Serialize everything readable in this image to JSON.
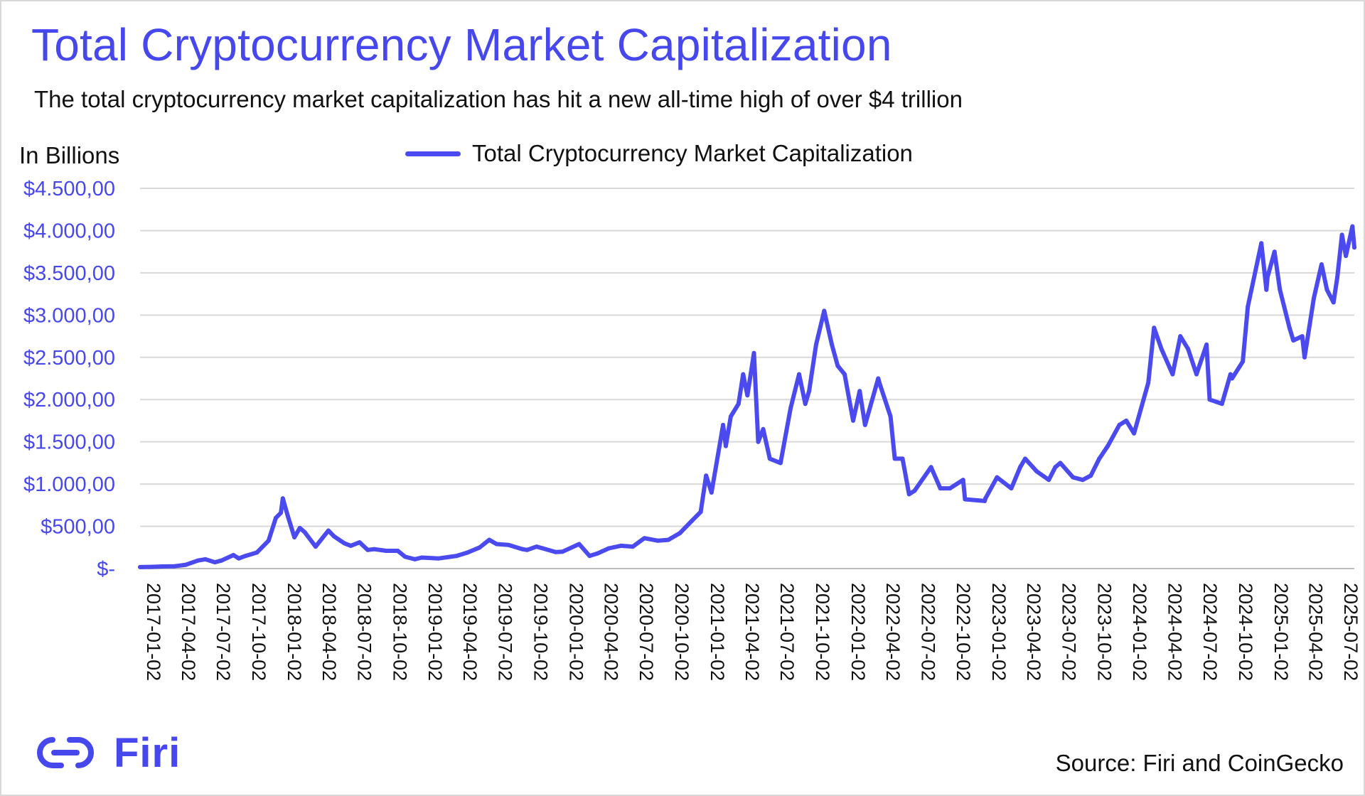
{
  "header": {
    "title": "Total Cryptocurrency Market Capitalization",
    "subtitle": "The total cryptocurrency market capitalization has hit a new all-time high of over $4 trillion"
  },
  "footer": {
    "brand": "Firi",
    "source": "Source: Firi and CoinGecko"
  },
  "colors": {
    "accent": "#4747ee",
    "line": "#4a4aef",
    "grid": "#d9d9d9"
  },
  "chart_data": {
    "type": "line",
    "ylabel": "In Billions",
    "ylim": [
      0,
      4500
    ],
    "y_ticks": [
      0,
      500,
      1000,
      1500,
      2000,
      2500,
      3000,
      3500,
      4000,
      4500
    ],
    "y_tick_labels": [
      "$-",
      "$500,00",
      "$1.000,00",
      "$1.500,00",
      "$2.000,00",
      "$2.500,00",
      "$3.000,00",
      "$3.500,00",
      "$4.000,00",
      "$4.500,00"
    ],
    "x_tick_labels": [
      "2017-01-02",
      "2017-04-02",
      "2017-07-02",
      "2017-10-02",
      "2018-01-02",
      "2018-04-02",
      "2018-07-02",
      "2018-10-02",
      "2019-01-02",
      "2019-04-02",
      "2019-07-02",
      "2019-10-02",
      "2020-01-02",
      "2020-04-02",
      "2020-07-02",
      "2020-10-02",
      "2021-01-02",
      "2021-04-02",
      "2021-07-02",
      "2021-10-02",
      "2022-01-02",
      "2022-04-02",
      "2022-07-02",
      "2022-10-02",
      "2023-01-02",
      "2023-04-02",
      "2023-07-02",
      "2023-10-02",
      "2024-01-02",
      "2024-04-02",
      "2024-07-02",
      "2024-10-02",
      "2025-01-02",
      "2025-04-02",
      "2025-07-02"
    ],
    "xlim": [
      "2017-01-02",
      "2025-08-15"
    ],
    "grid": true,
    "legend": "top-center",
    "series": [
      {
        "name": "Total Cryptocurrency Market Capitalization",
        "points": [
          [
            "2017-01-02",
            18
          ],
          [
            "2017-02-01",
            20
          ],
          [
            "2017-03-01",
            25
          ],
          [
            "2017-04-02",
            28
          ],
          [
            "2017-05-01",
            45
          ],
          [
            "2017-06-01",
            95
          ],
          [
            "2017-06-20",
            110
          ],
          [
            "2017-07-15",
            75
          ],
          [
            "2017-08-01",
            95
          ],
          [
            "2017-09-01",
            160
          ],
          [
            "2017-09-15",
            120
          ],
          [
            "2017-10-02",
            150
          ],
          [
            "2017-11-01",
            190
          ],
          [
            "2017-12-01",
            330
          ],
          [
            "2017-12-20",
            600
          ],
          [
            "2018-01-02",
            660
          ],
          [
            "2018-01-07",
            830
          ],
          [
            "2018-01-20",
            620
          ],
          [
            "2018-02-06",
            370
          ],
          [
            "2018-02-20",
            480
          ],
          [
            "2018-03-05",
            430
          ],
          [
            "2018-04-02",
            260
          ],
          [
            "2018-05-05",
            450
          ],
          [
            "2018-05-20",
            380
          ],
          [
            "2018-06-15",
            300
          ],
          [
            "2018-07-02",
            270
          ],
          [
            "2018-07-25",
            310
          ],
          [
            "2018-08-15",
            220
          ],
          [
            "2018-09-01",
            230
          ],
          [
            "2018-10-02",
            210
          ],
          [
            "2018-11-01",
            210
          ],
          [
            "2018-11-20",
            140
          ],
          [
            "2018-12-15",
            110
          ],
          [
            "2019-01-02",
            130
          ],
          [
            "2019-02-15",
            120
          ],
          [
            "2019-04-02",
            150
          ],
          [
            "2019-05-01",
            190
          ],
          [
            "2019-06-01",
            250
          ],
          [
            "2019-06-26",
            340
          ],
          [
            "2019-07-15",
            290
          ],
          [
            "2019-08-15",
            280
          ],
          [
            "2019-09-20",
            230
          ],
          [
            "2019-10-02",
            220
          ],
          [
            "2019-10-27",
            260
          ],
          [
            "2019-12-15",
            195
          ],
          [
            "2020-01-02",
            200
          ],
          [
            "2020-02-14",
            290
          ],
          [
            "2020-03-12",
            150
          ],
          [
            "2020-04-02",
            180
          ],
          [
            "2020-05-01",
            240
          ],
          [
            "2020-06-01",
            270
          ],
          [
            "2020-07-02",
            260
          ],
          [
            "2020-08-01",
            360
          ],
          [
            "2020-09-05",
            330
          ],
          [
            "2020-10-02",
            340
          ],
          [
            "2020-11-01",
            420
          ],
          [
            "2020-12-01",
            560
          ],
          [
            "2020-12-25",
            670
          ],
          [
            "2021-01-08",
            1100
          ],
          [
            "2021-01-22",
            900
          ],
          [
            "2021-02-21",
            1700
          ],
          [
            "2021-02-28",
            1450
          ],
          [
            "2021-03-13",
            1800
          ],
          [
            "2021-04-02",
            1950
          ],
          [
            "2021-04-14",
            2300
          ],
          [
            "2021-04-25",
            2050
          ],
          [
            "2021-05-12",
            2550
          ],
          [
            "2021-05-23",
            1500
          ],
          [
            "2021-06-05",
            1650
          ],
          [
            "2021-06-22",
            1300
          ],
          [
            "2021-07-20",
            1250
          ],
          [
            "2021-08-15",
            1900
          ],
          [
            "2021-09-06",
            2300
          ],
          [
            "2021-09-22",
            1950
          ],
          [
            "2021-10-02",
            2100
          ],
          [
            "2021-10-20",
            2650
          ],
          [
            "2021-11-10",
            3050
          ],
          [
            "2021-11-30",
            2650
          ],
          [
            "2021-12-15",
            2400
          ],
          [
            "2022-01-02",
            2300
          ],
          [
            "2022-01-24",
            1750
          ],
          [
            "2022-02-10",
            2100
          ],
          [
            "2022-02-24",
            1700
          ],
          [
            "2022-03-30",
            2250
          ],
          [
            "2022-04-02",
            2200
          ],
          [
            "2022-05-01",
            1800
          ],
          [
            "2022-05-12",
            1300
          ],
          [
            "2022-06-01",
            1300
          ],
          [
            "2022-06-18",
            880
          ],
          [
            "2022-07-02",
            920
          ],
          [
            "2022-08-14",
            1200
          ],
          [
            "2022-09-07",
            950
          ],
          [
            "2022-10-02",
            950
          ],
          [
            "2022-11-05",
            1050
          ],
          [
            "2022-11-10",
            820
          ],
          [
            "2022-12-31",
            800
          ],
          [
            "2023-01-02",
            830
          ],
          [
            "2023-02-01",
            1080
          ],
          [
            "2023-03-10",
            950
          ],
          [
            "2023-04-02",
            1200
          ],
          [
            "2023-04-15",
            1300
          ],
          [
            "2023-05-15",
            1150
          ],
          [
            "2023-06-15",
            1050
          ],
          [
            "2023-07-02",
            1200
          ],
          [
            "2023-07-15",
            1250
          ],
          [
            "2023-08-17",
            1080
          ],
          [
            "2023-09-11",
            1050
          ],
          [
            "2023-10-02",
            1100
          ],
          [
            "2023-10-24",
            1300
          ],
          [
            "2023-11-15",
            1450
          ],
          [
            "2023-12-15",
            1700
          ],
          [
            "2024-01-02",
            1750
          ],
          [
            "2024-01-22",
            1600
          ],
          [
            "2024-02-28",
            2200
          ],
          [
            "2024-03-14",
            2850
          ],
          [
            "2024-04-02",
            2600
          ],
          [
            "2024-05-01",
            2300
          ],
          [
            "2024-05-21",
            2750
          ],
          [
            "2024-06-10",
            2600
          ],
          [
            "2024-07-02",
            2300
          ],
          [
            "2024-07-28",
            2650
          ],
          [
            "2024-08-05",
            2000
          ],
          [
            "2024-09-06",
            1950
          ],
          [
            "2024-09-28",
            2300
          ],
          [
            "2024-10-02",
            2250
          ],
          [
            "2024-10-30",
            2450
          ],
          [
            "2024-11-12",
            3100
          ],
          [
            "2024-12-17",
            3850
          ],
          [
            "2024-12-30",
            3300
          ],
          [
            "2025-01-02",
            3450
          ],
          [
            "2025-01-20",
            3750
          ],
          [
            "2025-02-03",
            3300
          ],
          [
            "2025-02-28",
            2850
          ],
          [
            "2025-03-10",
            2700
          ],
          [
            "2025-04-02",
            2750
          ],
          [
            "2025-04-08",
            2500
          ],
          [
            "2025-05-02",
            3200
          ],
          [
            "2025-05-22",
            3600
          ],
          [
            "2025-06-05",
            3300
          ],
          [
            "2025-06-22",
            3150
          ],
          [
            "2025-07-02",
            3450
          ],
          [
            "2025-07-14",
            3950
          ],
          [
            "2025-07-24",
            3700
          ],
          [
            "2025-08-10",
            4050
          ],
          [
            "2025-08-15",
            3800
          ]
        ]
      }
    ]
  }
}
